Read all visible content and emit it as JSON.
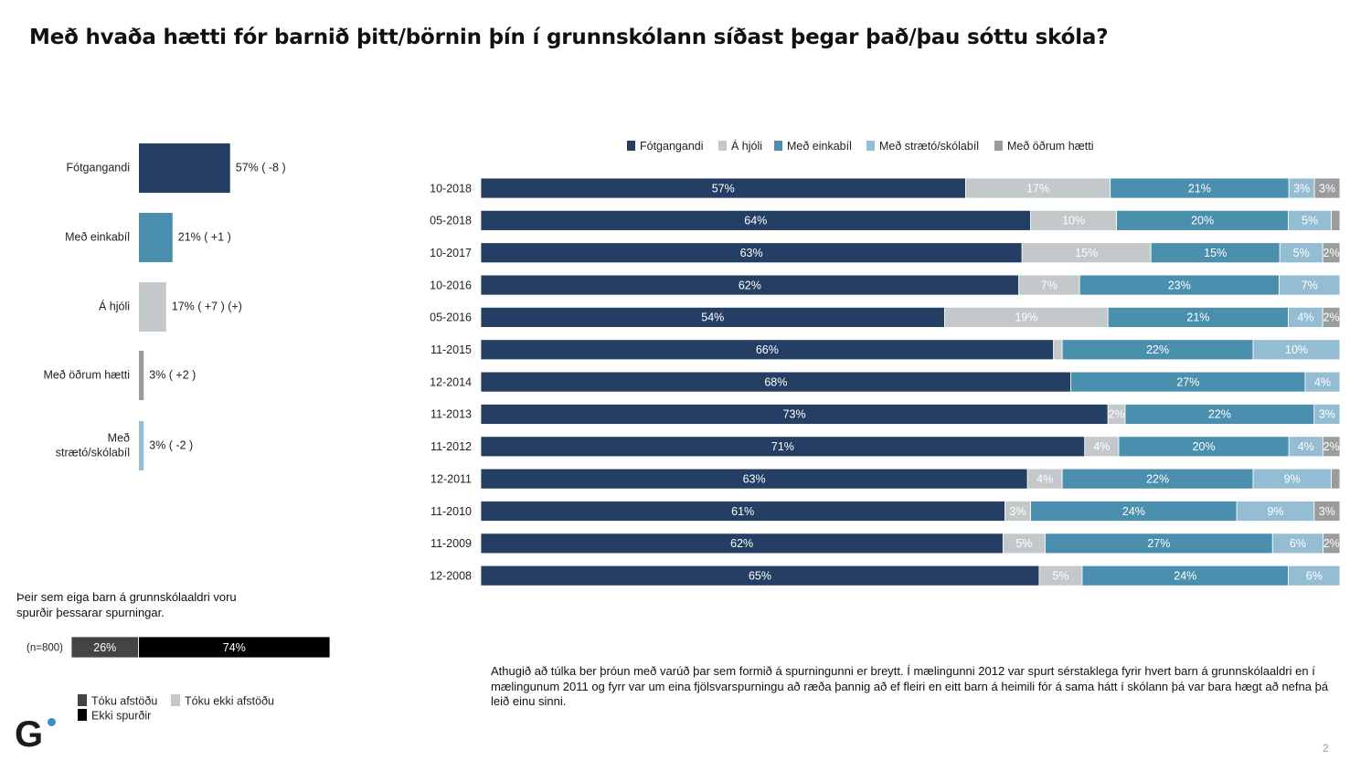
{
  "title": "Með hvaða hætti fór barnið þitt/börnin þín í grunnskólann síðast þegar það/þau sóttu skóla?",
  "colors": {
    "Fótgangandi": "#243f63",
    "Á hjóli": "#c3c8ca",
    "Með einkabíl": "#4a8fad",
    "Með strætó/skólabíl": "#94bdd4",
    "Með öðrum hætti": "#9a9da0",
    "Tóku afstöðu": "#444444",
    "Ekki spurðir": "#000000",
    "Tóku ekki afstöðu": "#c3c8ca"
  },
  "chart_data": [
    {
      "type": "bar",
      "orientation": "vertical",
      "categories": [
        "Fótgangandi",
        "Með einkabíl",
        "Á hjóli",
        "Með öðrum hætti",
        "Með strætó/skólabíl"
      ],
      "category_lines": [
        [
          "Fótgangandi"
        ],
        [
          "Með einkabíl"
        ],
        [
          "Á hjóli"
        ],
        [
          "Með öðrum hætti"
        ],
        [
          "Með",
          "strætó/skólabíl"
        ]
      ],
      "values": [
        57,
        21,
        17,
        3,
        3
      ],
      "labels": [
        "57% ( -8 )",
        "21% ( +1 )",
        "17% ( +7 ) (+)",
        "3% ( +2 )",
        "3% ( -2 )"
      ],
      "color_keys": [
        "Fótgangandi",
        "Með einkabíl",
        "Á hjóli",
        "Með öðrum hætti",
        "Með strætó/skólabíl"
      ]
    },
    {
      "type": "bar",
      "stacked": true,
      "orientation": "horizontal",
      "legend": [
        "Fótgangandi",
        "Á hjóli",
        "Með einkabíl",
        "Með strætó/skólabíl",
        "Með öðrum hætti"
      ],
      "categories": [
        "10-2018",
        "05-2018",
        "10-2017",
        "10-2016",
        "05-2016",
        "11-2015",
        "12-2014",
        "11-2013",
        "11-2012",
        "12-2011",
        "11-2010",
        "11-2009",
        "12-2008"
      ],
      "series": [
        {
          "name": "Fótgangandi",
          "values": [
            57,
            64,
            63,
            62,
            54,
            66,
            68,
            73,
            71,
            63,
            61,
            62,
            65
          ],
          "labels": [
            "57%",
            "64%",
            "63%",
            "62%",
            "54%",
            "66%",
            "68%",
            "73%",
            "71%",
            "63%",
            "61%",
            "62%",
            "65%"
          ]
        },
        {
          "name": "Á hjóli",
          "values": [
            17,
            10,
            15,
            7,
            19,
            1,
            0,
            2,
            4,
            4,
            3,
            5,
            5
          ],
          "labels": [
            "17%",
            "10%",
            "15%",
            "7%",
            "19%",
            "",
            "",
            "2%",
            "4%",
            "4%",
            "3%",
            "5%",
            "5%"
          ]
        },
        {
          "name": "Með einkabíl",
          "values": [
            21,
            20,
            15,
            23,
            21,
            22,
            27,
            22,
            20,
            22,
            24,
            27,
            24
          ],
          "labels": [
            "21%",
            "20%",
            "15%",
            "23%",
            "21%",
            "22%",
            "27%",
            "22%",
            "20%",
            "22%",
            "24%",
            "27%",
            "24%"
          ]
        },
        {
          "name": "Með strætó/skólabíl",
          "values": [
            3,
            5,
            5,
            7,
            4,
            10,
            4,
            3,
            4,
            9,
            9,
            6,
            6
          ],
          "labels": [
            "3%",
            "5%",
            "5%",
            "7%",
            "4%",
            "10%",
            "4%",
            "3%",
            "4%",
            "9%",
            "9%",
            "6%",
            "6%"
          ]
        },
        {
          "name": "Með öðrum hætti",
          "values": [
            3,
            1,
            2,
            0,
            2,
            0,
            0,
            0,
            2,
            1,
            3,
            2,
            0
          ],
          "labels": [
            "3%",
            "",
            "2%",
            "",
            "2%",
            "",
            "",
            "",
            "2%",
            "",
            "3%",
            "2%",
            ""
          ]
        }
      ]
    },
    {
      "type": "bar",
      "stacked": true,
      "orientation": "horizontal",
      "category": "(n=800)",
      "series": [
        {
          "name": "Tóku afstöðu",
          "value": 26,
          "label": "26%"
        },
        {
          "name": "Ekki spurðir",
          "value": 74,
          "label": "74%"
        }
      ],
      "legend": [
        "Tóku afstöðu",
        "Tóku ekki afstöðu",
        "Ekki spurðir"
      ]
    }
  ],
  "note": "Þeir sem eiga barn á grunnskólaaldri voru spurðir þessarar spurningar.",
  "footnote": "Athugið að túlka ber þróun með varúð þar sem formið á spurningunni er breytt. Í mælingunni 2012 var spurt sérstaklega fyrir hvert barn á grunnskólaaldri en í mælingunum 2011 og fyrr var um eina fjölsvarspurningu að ræða þannig að ef fleiri en eitt barn á heimili fór á sama hátt í skólann þá var bara hægt að nefna þá leið einu sinni.",
  "logo": "G",
  "page_number": "2"
}
